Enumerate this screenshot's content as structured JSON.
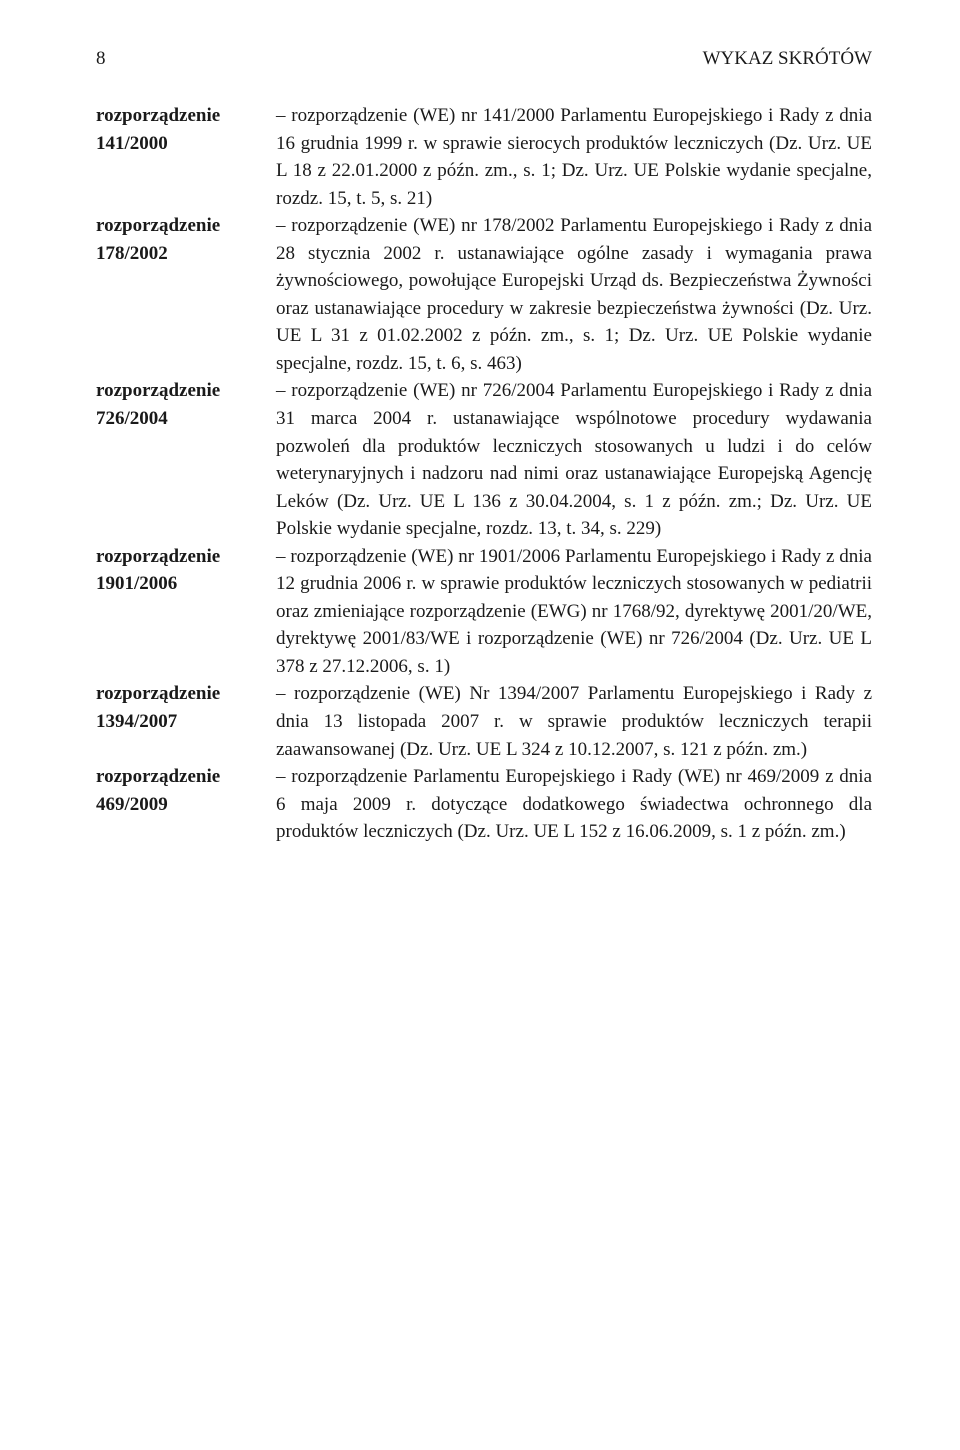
{
  "page_number": "8",
  "header_title": "WYKAZ SKRÓTÓW",
  "dash": "–",
  "entries": [
    {
      "term_line1": "rozporządzenie",
      "term_line2": "141/2000",
      "definition": "rozporządzenie (WE) nr 141/2000 Parlamentu Europejskiego i Rady z dnia 16 grudnia 1999 r. w sprawie sierocych produktów leczniczych (Dz. Urz. UE L 18 z 22.01.2000 z późn. zm., s. 1; Dz. Urz. UE Polskie wydanie specjalne, rozdz. 15, t. 5, s. 21)"
    },
    {
      "term_line1": "rozporządzenie",
      "term_line2": "178/2002",
      "definition": "rozporządzenie (WE) nr 178/2002 Parlamentu Europejskiego i Rady z dnia 28 stycznia 2002 r. ustanawiające ogólne zasady i wymagania prawa żywnościowego, powołujące Europejski Urząd ds. Bezpieczeństwa Żywności oraz ustanawiające procedury w zakresie bezpieczeństwa żywności (Dz. Urz. UE L 31 z 01.02.2002 z późn. zm., s. 1; Dz. Urz. UE Polskie wydanie specjalne, rozdz. 15, t. 6, s. 463)"
    },
    {
      "term_line1": "rozporządzenie",
      "term_line2": "726/2004",
      "definition": "rozporządzenie (WE) nr 726/2004 Parlamentu Europejskiego i Rady z dnia 31 marca 2004 r. ustanawiające wspólnotowe procedury wydawania pozwoleń dla produktów leczniczych stosowanych u ludzi i do celów weterynaryjnych i nadzoru nad nimi oraz ustanawiające Europejską Agencję Leków (Dz. Urz. UE L 136 z 30.04.2004, s. 1 z późn. zm.; Dz. Urz. UE Polskie wydanie specjalne, rozdz. 13, t. 34, s. 229)"
    },
    {
      "term_line1": "rozporządzenie",
      "term_line2": "1901/2006",
      "definition": "rozporządzenie (WE) nr 1901/2006 Parlamentu Europejskiego i Rady z dnia 12 grudnia 2006 r. w sprawie produktów leczniczych stosowanych w pediatrii oraz zmieniające rozporządzenie (EWG) nr 1768/92, dyrektywę 2001/20/WE, dyrektywę 2001/83/WE i rozporządzenie (WE) nr 726/2004 (Dz. Urz. UE L 378 z 27.12.2006, s. 1)"
    },
    {
      "term_line1": "rozporządzenie",
      "term_line2": "1394/2007",
      "definition": "rozporządzenie (WE) Nr 1394/2007 Parlamentu Europejskiego i Rady z dnia 13 listopada 2007 r. w sprawie produktów leczniczych terapii zaawansowanej (Dz. Urz. UE L 324 z 10.12.2007, s. 121 z późn. zm.)"
    },
    {
      "term_line1": "rozporządzenie",
      "term_line2": "469/2009",
      "definition": "rozporządzenie Parlamentu Europejskiego i Rady (WE) nr 469/2009 z dnia 6 maja 2009 r. dotyczące dodatkowego świadectwa ochronnego dla produktów leczniczych (Dz. Urz. UE L 152 z 16.06.2009, s. 1 z późn. zm.)"
    }
  ]
}
